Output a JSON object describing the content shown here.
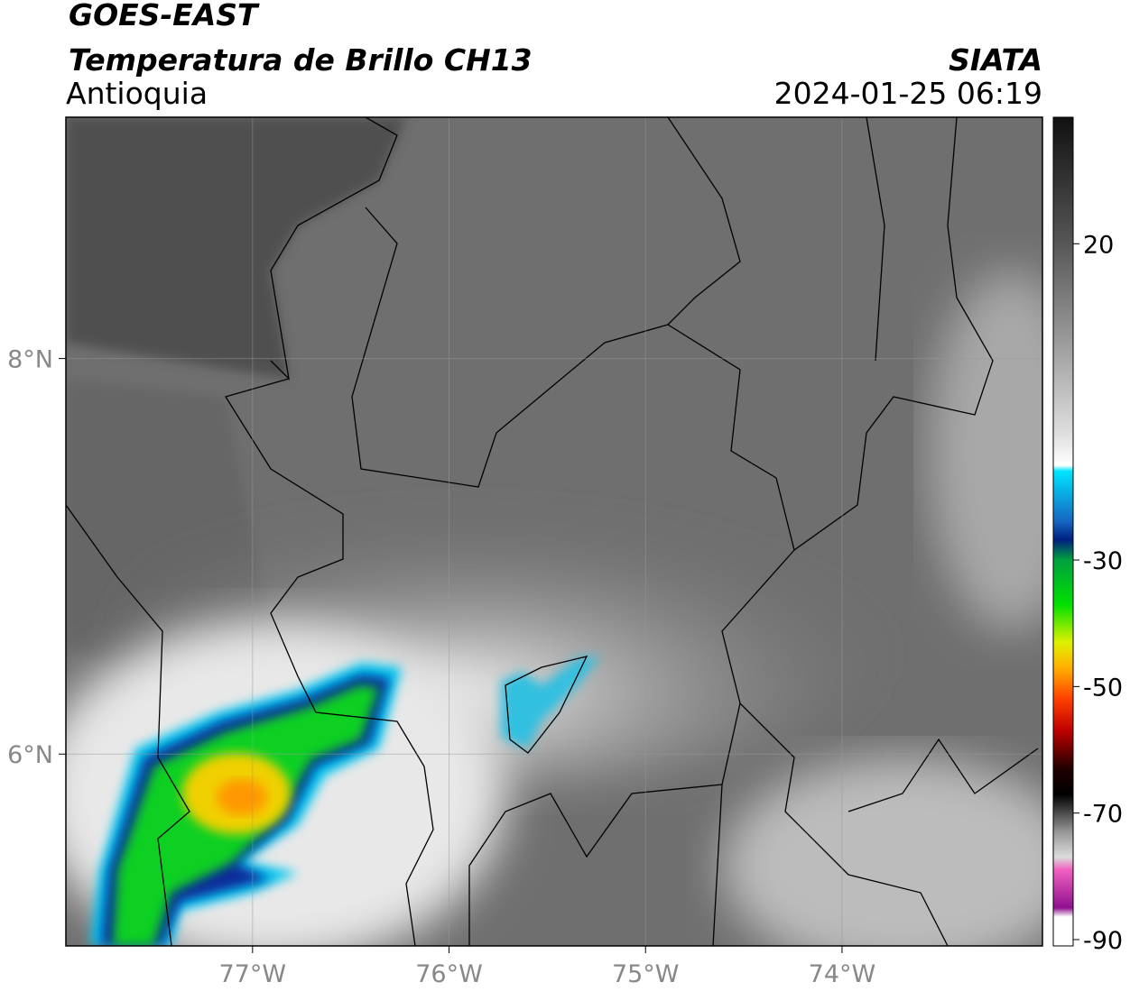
{
  "header": {
    "source": "GOES-EAST",
    "product": "Temperatura de Brillo CH13",
    "region": "Antioquia",
    "agency": "SIATA",
    "datetime": "2024-01-25 06:19"
  },
  "map": {
    "xlim": [
      -77.95,
      -72.98
    ],
    "ylim": [
      5.03,
      9.22
    ],
    "xticks": [
      {
        "value": -77,
        "label": "77°W"
      },
      {
        "value": -76,
        "label": "76°W"
      },
      {
        "value": -75,
        "label": "75°W"
      },
      {
        "value": -74,
        "label": "74°W"
      }
    ],
    "yticks": [
      {
        "value": 8,
        "label": "8°N"
      },
      {
        "value": 6,
        "label": "6°N"
      }
    ],
    "grid": true
  },
  "colorbar": {
    "lim": [
      -91,
      40
    ],
    "ticks": [
      20,
      -30,
      -50,
      -70,
      -90
    ]
  }
}
